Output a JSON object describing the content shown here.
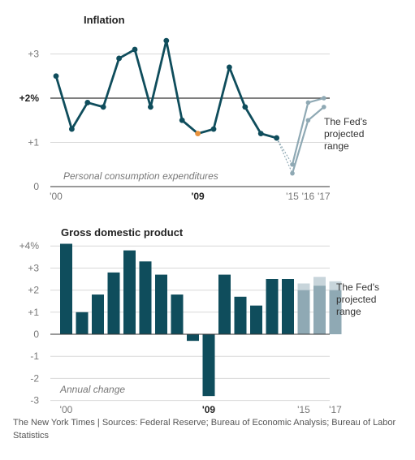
{
  "chart_data": [
    {
      "type": "line",
      "title": "Inflation",
      "annotation": "Personal consumption expenditures",
      "ylim": [
        0,
        3.3
      ],
      "yticks": [
        {
          "value": 0,
          "label": "0"
        },
        {
          "value": 1,
          "label": "+1"
        },
        {
          "value": 2,
          "label": "+2%",
          "bold": true
        },
        {
          "value": 3,
          "label": "+3"
        }
      ],
      "xlim": [
        2000,
        2017
      ],
      "xticks": [
        {
          "value": 2000,
          "label": "'00"
        },
        {
          "value": 2009,
          "label": "'09",
          "bold": true
        },
        {
          "value": 2015,
          "label": "'15"
        },
        {
          "value": 2016,
          "label": "'16"
        },
        {
          "value": 2017,
          "label": "'17"
        }
      ],
      "series": [
        {
          "role": "actual",
          "color": "#0f4d5c",
          "highlight_color": "#e8923c",
          "highlight_x": 2009,
          "x": [
            2000,
            2001,
            2002,
            2003,
            2004,
            2005,
            2006,
            2007,
            2008,
            2009,
            2010,
            2011,
            2012,
            2013,
            2014
          ],
          "y": [
            2.5,
            1.3,
            1.9,
            1.8,
            2.9,
            3.1,
            1.8,
            3.3,
            1.5,
            1.2,
            1.3,
            2.7,
            1.8,
            1.2,
            1.1
          ]
        },
        {
          "role": "projection-high",
          "color": "#8fa9b4",
          "x": [
            2015,
            2016,
            2017
          ],
          "y": [
            0.5,
            1.9,
            2.0
          ]
        },
        {
          "role": "projection-low",
          "color": "#8fa9b4",
          "x": [
            2015,
            2016,
            2017
          ],
          "y": [
            0.3,
            1.5,
            1.8
          ]
        }
      ],
      "range_label": [
        "The Fed's",
        "projected",
        "range"
      ]
    },
    {
      "type": "bar",
      "title": "Gross domestic product",
      "annotation": "Annual change",
      "ylim": [
        -3,
        4
      ],
      "yticks": [
        {
          "value": 4,
          "label": "+4%"
        },
        {
          "value": 3,
          "label": "+3"
        },
        {
          "value": 2,
          "label": "+2"
        },
        {
          "value": 1,
          "label": "+1"
        },
        {
          "value": 0,
          "label": "0"
        },
        {
          "value": -1,
          "label": "-1"
        },
        {
          "value": -2,
          "label": "-2"
        },
        {
          "value": -3,
          "label": "-3"
        }
      ],
      "x": [
        2000,
        2001,
        2002,
        2003,
        2004,
        2005,
        2006,
        2007,
        2008,
        2009,
        2010,
        2011,
        2012,
        2013,
        2014
      ],
      "values": [
        4.1,
        1.0,
        1.8,
        2.8,
        3.8,
        3.3,
        2.7,
        1.8,
        -0.3,
        -2.8,
        2.7,
        1.7,
        1.3,
        2.5,
        2.5
      ],
      "bar_color": "#0f4d5c",
      "xticks": [
        {
          "value": 2000,
          "label": "'00"
        },
        {
          "value": 2009,
          "label": "'09",
          "bold": true
        },
        {
          "value": 2015,
          "label": "'15"
        },
        {
          "value": 2017,
          "label": "'17"
        }
      ],
      "projection": {
        "x": [
          2015,
          2016,
          2017
        ],
        "low": [
          2.0,
          2.2,
          2.0
        ],
        "high": [
          2.3,
          2.6,
          2.4
        ],
        "low_color": "#8fa9b4",
        "high_color": "#c8d5db"
      },
      "range_label": [
        "The Fed's",
        "projected",
        "range"
      ]
    }
  ],
  "source": "The New York Times | Sources: Federal Reserve; Bureau of Economic Analysis; Bureau of Labor Statistics"
}
